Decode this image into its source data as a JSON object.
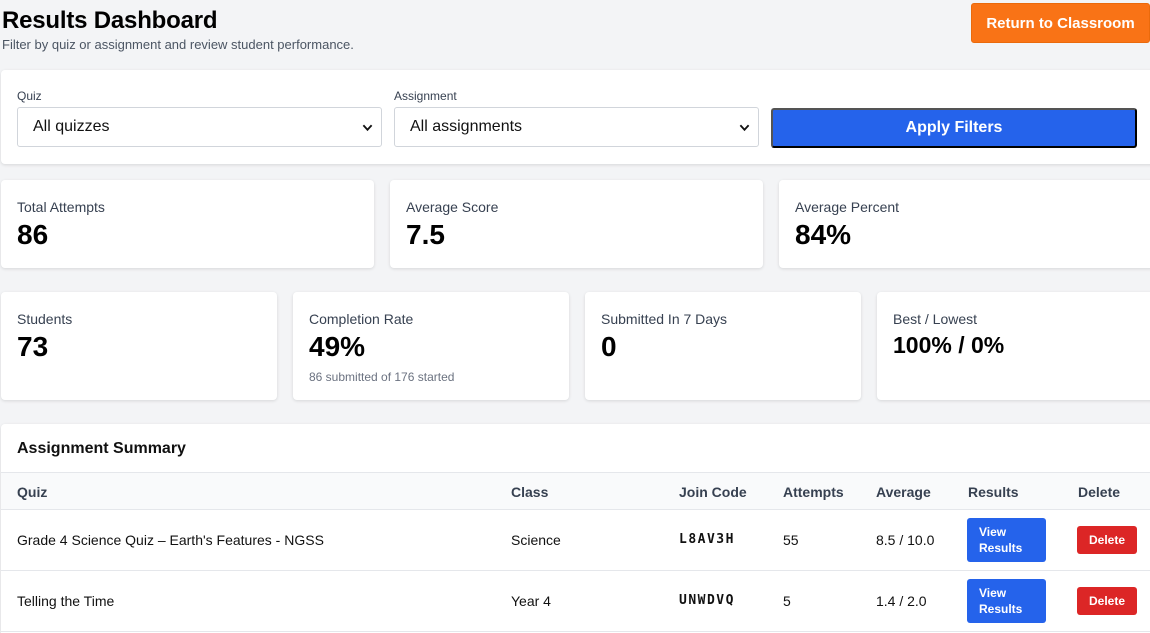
{
  "header": {
    "title": "Results Dashboard",
    "subtitle": "Filter by quiz or assignment and review student performance.",
    "return_label": "Return to Classroom"
  },
  "filters": {
    "quiz_label": "Quiz",
    "quiz_value": "All quizzes",
    "assignment_label": "Assignment",
    "assignment_value": "All assignments",
    "apply_label": "Apply Filters"
  },
  "stats_row1": [
    {
      "label": "Total Attempts",
      "value": "86"
    },
    {
      "label": "Average Score",
      "value": "7.5"
    },
    {
      "label": "Average Percent",
      "value": "84%"
    }
  ],
  "stats_row2": [
    {
      "label": "Students",
      "value": "73",
      "note": ""
    },
    {
      "label": "Completion Rate",
      "value": "49%",
      "note": "86 submitted of 176 started"
    },
    {
      "label": "Submitted In 7 Days",
      "value": "0",
      "note": ""
    },
    {
      "label": "Best / Lowest",
      "value": "100% / 0%",
      "note": ""
    }
  ],
  "summary": {
    "title": "Assignment Summary",
    "columns": [
      "Quiz",
      "Class",
      "Join Code",
      "Attempts",
      "Average",
      "Results",
      "Delete"
    ],
    "rows": [
      {
        "quiz": "Grade 4 Science Quiz – Earth's Features - NGSS",
        "class": "Science",
        "join_code": "L8AV3H",
        "attempts": "55",
        "average": "8.5 / 10.0",
        "view_label_1": "View",
        "view_label_2": "Results",
        "delete_label": "Delete"
      },
      {
        "quiz": "Telling the Time",
        "class": "Year 4",
        "join_code": "UNWDVQ",
        "attempts": "5",
        "average": "1.4 / 2.0",
        "view_label_1": "View",
        "view_label_2": "Results",
        "delete_label": "Delete"
      }
    ]
  },
  "colors": {
    "return_button": "#f97316",
    "primary_button": "#2563eb",
    "delete_button": "#dc2626"
  },
  "icons": {
    "select_arrow": "chevron-down-icon"
  }
}
